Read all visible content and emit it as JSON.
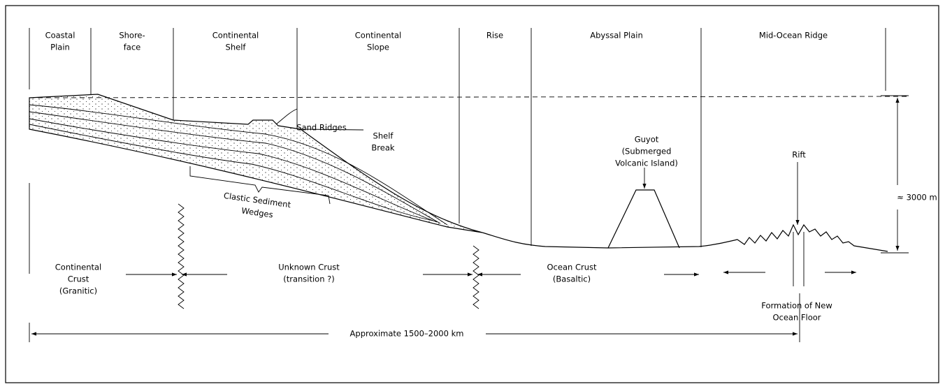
{
  "zones": [
    {
      "lines": [
        "Coastal",
        "Plain"
      ]
    },
    {
      "lines": [
        "Shore-",
        "face"
      ]
    },
    {
      "lines": [
        "Continental",
        "Shelf"
      ]
    },
    {
      "lines": [
        "Continental",
        "Slope"
      ]
    },
    {
      "lines": [
        "Rise"
      ]
    },
    {
      "lines": [
        "Abyssal Plain"
      ]
    },
    {
      "lines": [
        "Mid-Ocean Ridge"
      ]
    }
  ],
  "annotations": {
    "sand_ridges": "Sand Ridges",
    "shelf_break": [
      "Shelf",
      "Break"
    ],
    "guyot": [
      "Guyot",
      "(Submerged",
      "Volcanic Island)"
    ],
    "rift": "Rift",
    "depth": "≈ 3000 m",
    "sediment": [
      "Clastic Sediment",
      "Wedges"
    ]
  },
  "crust": {
    "continental": [
      "Continental",
      "Crust",
      "(Granitic)"
    ],
    "unknown": [
      "Unknown Crust",
      "(transition ?)"
    ],
    "ocean": [
      "Ocean Crust",
      "(Basaltic)"
    ],
    "new_floor": [
      "Formation of New",
      "Ocean Floor"
    ]
  },
  "scale": "Approximate 1500–2000 km"
}
